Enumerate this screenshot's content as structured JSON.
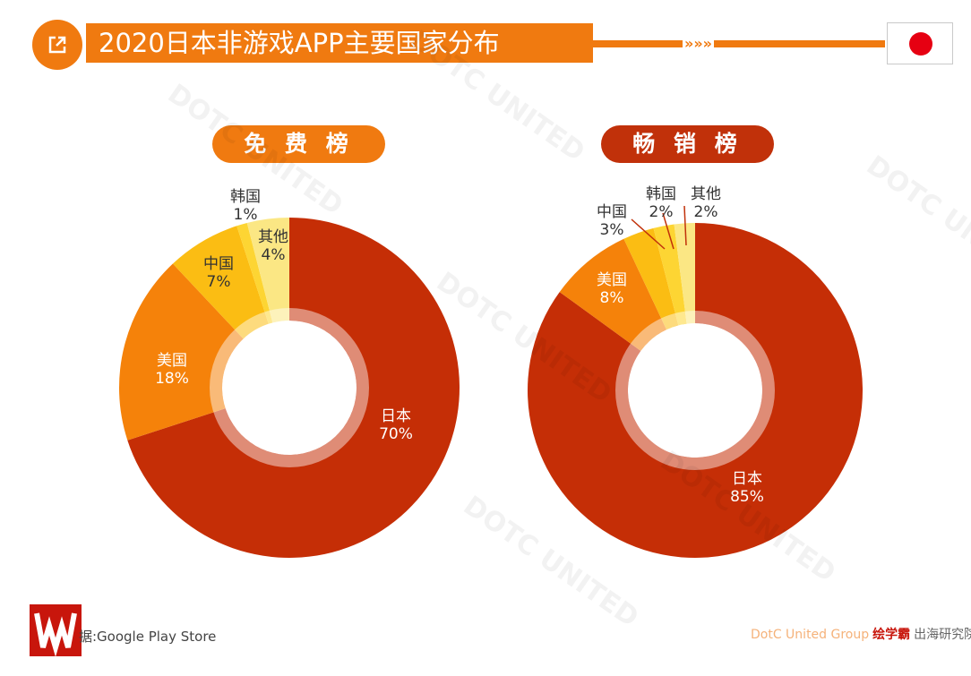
{
  "header": {
    "title": "2020日本非游戏APP主要国家分布",
    "chevrons": "»»»"
  },
  "panels": {
    "free_label": "免 费 榜",
    "paid_label": "畅 销 榜"
  },
  "footer": {
    "source": "据:Google Play Store",
    "dotc": "DotC United Group",
    "brand": "绘学霸",
    "institute": "出海研究院"
  },
  "colors": {
    "accent": "#f07a10",
    "dark_red": "#c1310a",
    "japan": "#c52e06",
    "usa": "#f5820a",
    "china": "#fbbd13",
    "korea": "#fdd533",
    "other": "#fbe784",
    "flag_red": "#e60012"
  },
  "chart_data": [
    {
      "type": "pie",
      "title": "免费榜",
      "slices": [
        {
          "label": "日本",
          "value": 70,
          "text": "70%",
          "color": "#c52e06"
        },
        {
          "label": "美国",
          "value": 18,
          "text": "18%",
          "color": "#f5820a"
        },
        {
          "label": "中国",
          "value": 7,
          "text": "7%",
          "color": "#fbbd13"
        },
        {
          "label": "韩国",
          "value": 1,
          "text": "1%",
          "color": "#fdd533"
        },
        {
          "label": "其他",
          "value": 4,
          "text": "4%",
          "color": "#fbe784"
        }
      ]
    },
    {
      "type": "pie",
      "title": "畅销榜",
      "slices": [
        {
          "label": "日本",
          "value": 85,
          "text": "85%",
          "color": "#c52e06"
        },
        {
          "label": "美国",
          "value": 8,
          "text": "8%",
          "color": "#f5820a"
        },
        {
          "label": "中国",
          "value": 3,
          "text": "3%",
          "color": "#fbbd13"
        },
        {
          "label": "韩国",
          "value": 2,
          "text": "2%",
          "color": "#fdd533"
        },
        {
          "label": "其他",
          "value": 2,
          "text": "2%",
          "color": "#fbe784"
        }
      ]
    }
  ]
}
